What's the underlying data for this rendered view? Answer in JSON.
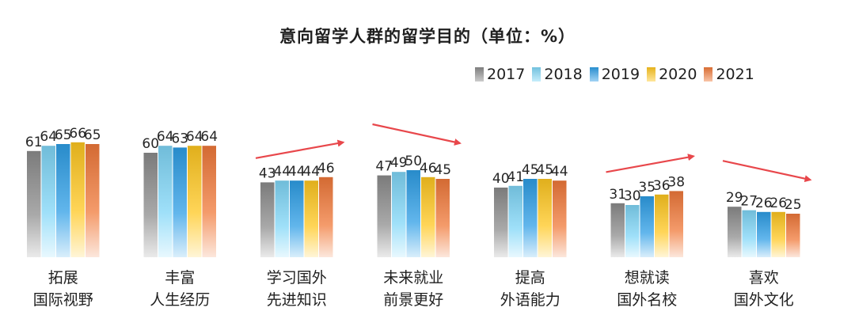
{
  "chart_data": {
    "type": "bar",
    "title": "意向留学人群的留学目的（单位：%）",
    "categories": [
      [
        "拓展",
        "国际视野"
      ],
      [
        "丰富",
        "人生经历"
      ],
      [
        "学习国外",
        "先进知识"
      ],
      [
        "未来就业",
        "前景更好"
      ],
      [
        "提高",
        "外语能力"
      ],
      [
        "想就读",
        "国外名校"
      ],
      [
        "喜欢",
        "国外文化"
      ]
    ],
    "series": [
      {
        "name": "2017",
        "color": "#8c8c8c",
        "values": [
          61,
          60,
          43,
          47,
          40,
          31,
          29
        ]
      },
      {
        "name": "2018",
        "color": "#7fd6f7",
        "values": [
          64,
          64,
          44,
          49,
          41,
          30,
          27
        ]
      },
      {
        "name": "2019",
        "color": "#2e9ee6",
        "values": [
          65,
          63,
          44,
          50,
          45,
          35,
          26
        ]
      },
      {
        "name": "2020",
        "color": "#ffc720",
        "values": [
          66,
          64,
          44,
          46,
          45,
          36,
          26
        ]
      },
      {
        "name": "2021",
        "color": "#f0793a",
        "values": [
          65,
          64,
          46,
          45,
          44,
          38,
          25
        ]
      }
    ],
    "trend_arrows": [
      {
        "category": "学习国外先进知识",
        "direction": "up"
      },
      {
        "category": "未来就业前景更好",
        "direction": "down"
      },
      {
        "category": "想就读国外名校",
        "direction": "up"
      },
      {
        "category": "喜欢国外文化",
        "direction": "down"
      }
    ],
    "arrow_color": "#e8474b",
    "ylim": [
      0,
      100
    ],
    "legend_position": "top-right",
    "grid": false
  }
}
